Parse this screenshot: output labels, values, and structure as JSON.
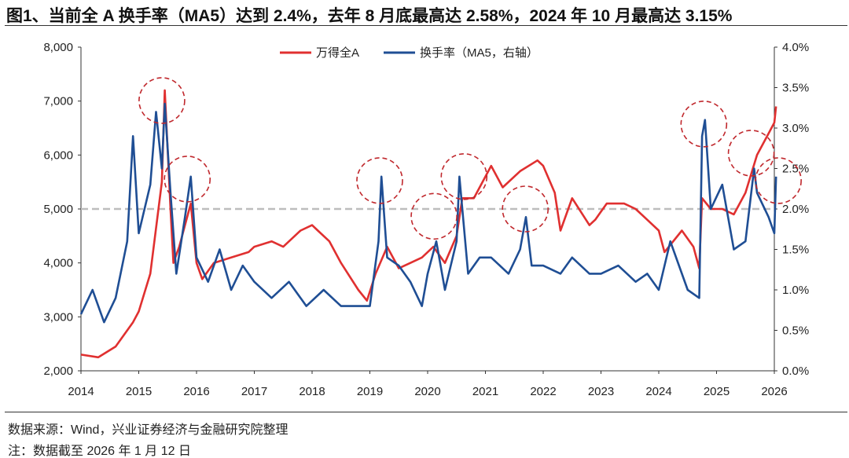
{
  "title": "图1、当前全 A 换手率（MA5）达到 2.4%，去年 8 月底最高达 2.58%，2024 年 10 月最高达 3.15%",
  "source": "数据来源：Wind，兴业证券经济与金融研究院整理",
  "note": "注：数据截至 2026 年 1 月 12 日",
  "chart_data": {
    "type": "line",
    "title": "",
    "legend_position": "top-center",
    "grid": false,
    "x_ticks": [
      "2014",
      "2015",
      "2016",
      "2017",
      "2018",
      "2019",
      "2020",
      "2021",
      "2022",
      "2023",
      "2024",
      "2025",
      "2026"
    ],
    "xlim": [
      2014,
      2026
    ],
    "y_left": {
      "lim": [
        2000,
        8000
      ],
      "ticks": [
        "2,000",
        "3,000",
        "4,000",
        "5,000",
        "6,000",
        "7,000",
        "8,000"
      ]
    },
    "y_right": {
      "lim": [
        0,
        4.0
      ],
      "ticks": [
        "0.0%",
        "0.5%",
        "1.0%",
        "1.5%",
        "2.0%",
        "2.5%",
        "3.0%",
        "3.5%",
        "4.0%"
      ]
    },
    "reference_line": {
      "axis": "left",
      "value": 5000,
      "color": "#bdbdbd",
      "style": "dashed"
    },
    "series": [
      {
        "name": "万得全A",
        "axis": "left",
        "color": "#e03030",
        "x": [
          2014.0,
          2014.3,
          2014.6,
          2014.9,
          2015.0,
          2015.2,
          2015.4,
          2015.45,
          2015.55,
          2015.6,
          2015.7,
          2015.9,
          2016.0,
          2016.1,
          2016.3,
          2016.6,
          2016.9,
          2017.0,
          2017.3,
          2017.5,
          2017.8,
          2018.0,
          2018.1,
          2018.3,
          2018.5,
          2018.8,
          2018.95,
          2019.1,
          2019.3,
          2019.5,
          2019.7,
          2019.9,
          2020.1,
          2020.3,
          2020.5,
          2020.6,
          2020.8,
          2021.0,
          2021.1,
          2021.3,
          2021.6,
          2021.9,
          2022.0,
          2022.2,
          2022.3,
          2022.5,
          2022.8,
          2022.9,
          2023.1,
          2023.4,
          2023.6,
          2023.8,
          2024.0,
          2024.1,
          2024.4,
          2024.6,
          2024.7,
          2024.75,
          2024.9,
          2025.1,
          2025.3,
          2025.5,
          2025.7,
          2025.9,
          2026.0,
          2026.03
        ],
        "y": [
          2300,
          2250,
          2450,
          2900,
          3100,
          3800,
          5500,
          7200,
          5000,
          4000,
          4300,
          5100,
          4000,
          3700,
          4000,
          4100,
          4200,
          4300,
          4400,
          4300,
          4600,
          4700,
          4600,
          4400,
          4000,
          3500,
          3300,
          3800,
          4300,
          3900,
          4000,
          4100,
          4300,
          4000,
          4500,
          5200,
          5200,
          5600,
          5800,
          5400,
          5700,
          5900,
          5800,
          5300,
          4600,
          5200,
          4700,
          4800,
          5100,
          5100,
          5000,
          4800,
          4600,
          4200,
          4600,
          4300,
          3900,
          5200,
          5000,
          5000,
          4900,
          5300,
          6000,
          6400,
          6600,
          6900
        ]
      },
      {
        "name": "换手率（MA5，右轴）",
        "axis": "right",
        "color": "#1f4e94",
        "x": [
          2014.0,
          2014.2,
          2014.4,
          2014.6,
          2014.8,
          2014.9,
          2015.0,
          2015.2,
          2015.3,
          2015.4,
          2015.45,
          2015.55,
          2015.65,
          2015.8,
          2015.9,
          2016.0,
          2016.2,
          2016.4,
          2016.6,
          2016.8,
          2017.0,
          2017.3,
          2017.6,
          2017.9,
          2018.2,
          2018.5,
          2018.8,
          2019.0,
          2019.15,
          2019.2,
          2019.3,
          2019.5,
          2019.7,
          2019.9,
          2020.0,
          2020.15,
          2020.3,
          2020.5,
          2020.55,
          2020.7,
          2020.9,
          2021.1,
          2021.4,
          2021.6,
          2021.7,
          2021.8,
          2022.0,
          2022.3,
          2022.5,
          2022.8,
          2023.0,
          2023.3,
          2023.6,
          2023.8,
          2024.0,
          2024.2,
          2024.5,
          2024.7,
          2024.75,
          2024.8,
          2024.9,
          2025.1,
          2025.3,
          2025.5,
          2025.65,
          2025.7,
          2025.9,
          2026.0,
          2026.03
        ],
        "y": [
          0.7,
          1.0,
          0.6,
          0.9,
          1.6,
          2.9,
          1.7,
          2.3,
          3.2,
          2.5,
          3.3,
          2.2,
          1.2,
          1.9,
          2.4,
          1.4,
          1.1,
          1.5,
          1.0,
          1.3,
          1.1,
          0.9,
          1.1,
          0.8,
          1.0,
          0.8,
          0.8,
          0.8,
          1.6,
          2.4,
          1.4,
          1.3,
          1.1,
          0.8,
          1.2,
          1.6,
          1.0,
          1.6,
          2.4,
          1.2,
          1.4,
          1.4,
          1.2,
          1.5,
          1.9,
          1.3,
          1.3,
          1.2,
          1.4,
          1.2,
          1.2,
          1.3,
          1.1,
          1.2,
          1.0,
          1.6,
          1.0,
          0.9,
          2.9,
          3.1,
          2.0,
          2.3,
          1.5,
          1.6,
          2.5,
          2.2,
          1.9,
          1.7,
          2.4
        ]
      }
    ],
    "highlight_circles": [
      {
        "x": 2015.4,
        "y_right": 3.34
      },
      {
        "x": 2015.84,
        "y_right": 2.37
      },
      {
        "x": 2019.17,
        "y_right": 2.35
      },
      {
        "x": 2020.11,
        "y_right": 1.91
      },
      {
        "x": 2020.63,
        "y_right": 2.4
      },
      {
        "x": 2021.69,
        "y_right": 2.0
      },
      {
        "x": 2024.78,
        "y_right": 3.05
      },
      {
        "x": 2025.6,
        "y_right": 2.69
      },
      {
        "x": 2026.07,
        "y_right": 2.35
      }
    ]
  }
}
